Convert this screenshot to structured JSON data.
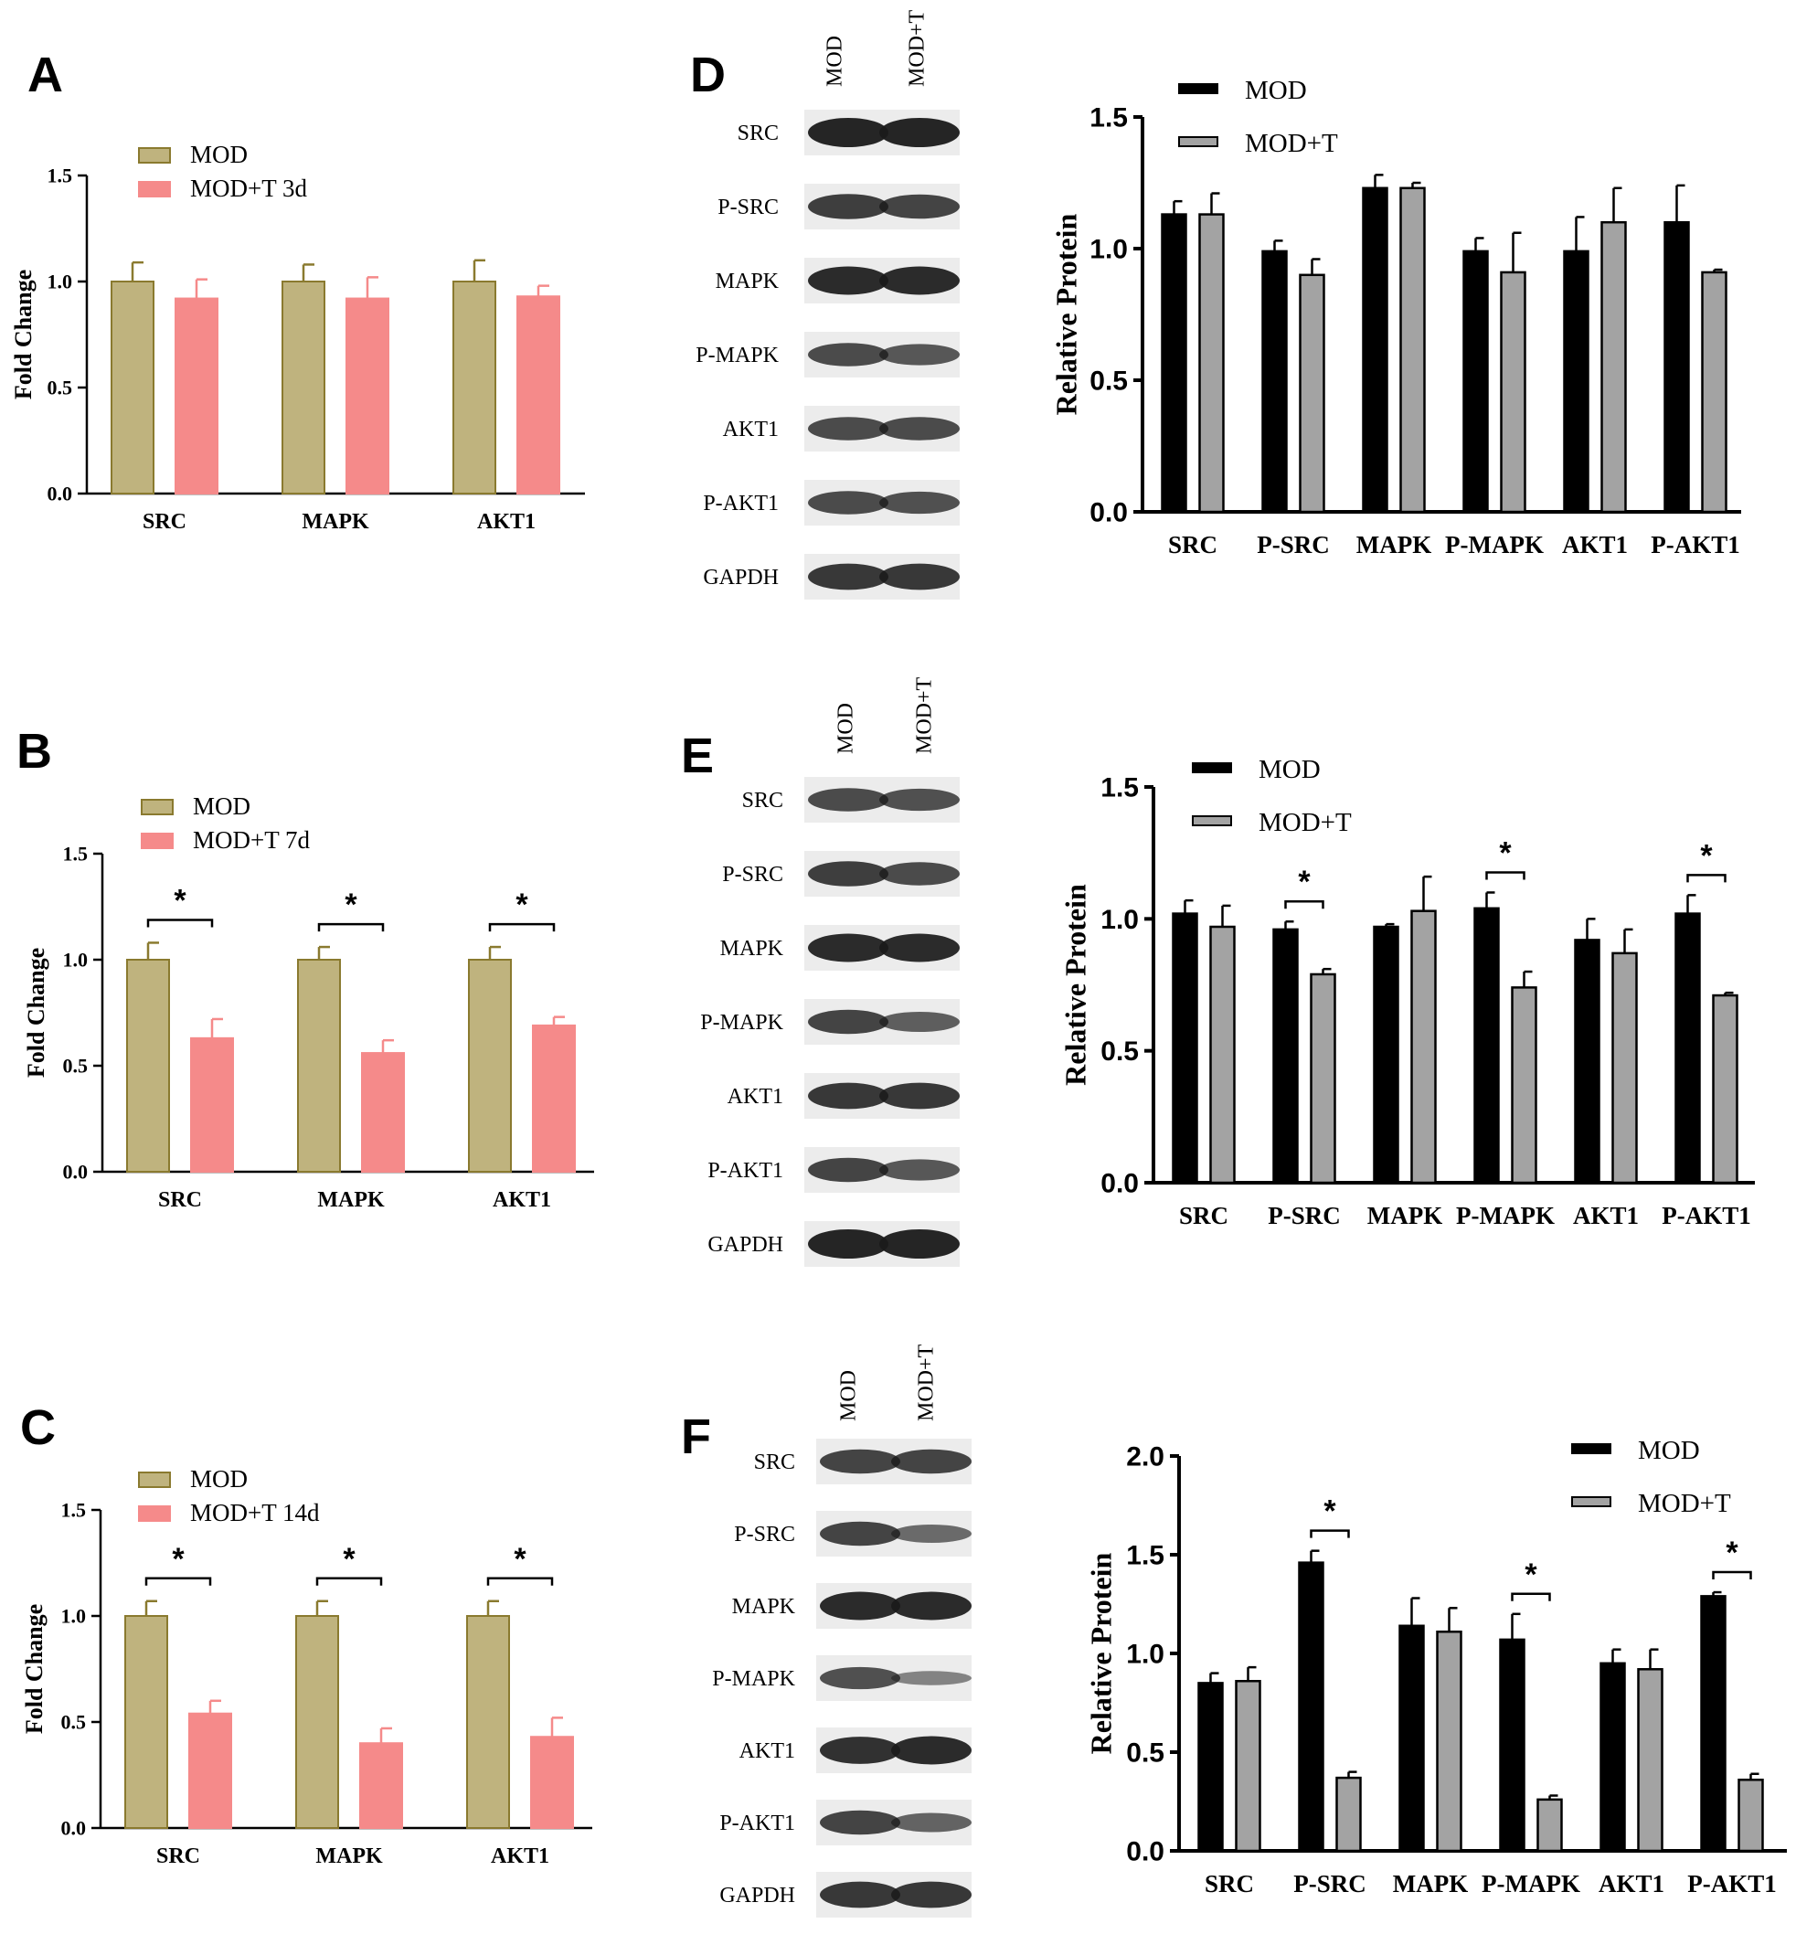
{
  "colors": {
    "mod_fold": "#bfb37e",
    "mod_fold_stroke": "#8a7a2f",
    "modt_fold": "#f58a8a",
    "modt_fold_stroke": "#f58a8a",
    "mod_protein": "#000000",
    "modt_protein": "#a3a3a3",
    "axis": "#000000",
    "blot_bg": "#ececec",
    "blot_band": "#1a1a1a"
  },
  "blots": [
    {
      "panel": "D",
      "lane_labels": [
        "MOD",
        "MOD+T"
      ],
      "rows": [
        {
          "label": "SRC",
          "bands": [
            1.0,
            1.0
          ]
        },
        {
          "label": "P-SRC",
          "bands": [
            0.8,
            0.75
          ]
        },
        {
          "label": "MAPK",
          "bands": [
            0.95,
            0.95
          ]
        },
        {
          "label": "P-MAPK",
          "bands": [
            0.7,
            0.6
          ]
        },
        {
          "label": "AKT1",
          "bands": [
            0.7,
            0.7
          ]
        },
        {
          "label": "P-AKT1",
          "bands": [
            0.7,
            0.65
          ]
        },
        {
          "label": "GAPDH",
          "bands": [
            0.85,
            0.85
          ]
        }
      ]
    },
    {
      "panel": "E",
      "lane_labels": [
        "MOD",
        "MOD+T"
      ],
      "rows": [
        {
          "label": "SRC",
          "bands": [
            0.7,
            0.65
          ]
        },
        {
          "label": "P-SRC",
          "bands": [
            0.8,
            0.7
          ]
        },
        {
          "label": "MAPK",
          "bands": [
            0.95,
            0.95
          ]
        },
        {
          "label": "P-MAPK",
          "bands": [
            0.75,
            0.55
          ]
        },
        {
          "label": "AKT1",
          "bands": [
            0.85,
            0.85
          ]
        },
        {
          "label": "P-AKT1",
          "bands": [
            0.75,
            0.6
          ]
        },
        {
          "label": "GAPDH",
          "bands": [
            1.0,
            1.0
          ]
        }
      ]
    },
    {
      "panel": "F",
      "lane_labels": [
        "MOD",
        "MOD+T"
      ],
      "rows": [
        {
          "label": "SRC",
          "bands": [
            0.75,
            0.75
          ]
        },
        {
          "label": "P-SRC",
          "bands": [
            0.75,
            0.45
          ]
        },
        {
          "label": "MAPK",
          "bands": [
            0.95,
            0.95
          ]
        },
        {
          "label": "P-MAPK",
          "bands": [
            0.65,
            0.25
          ]
        },
        {
          "label": "AKT1",
          "bands": [
            0.9,
            0.95
          ]
        },
        {
          "label": "P-AKT1",
          "bands": [
            0.75,
            0.5
          ]
        },
        {
          "label": "GAPDH",
          "bands": [
            0.85,
            0.85
          ]
        }
      ]
    }
  ],
  "chart_data": [
    {
      "panel": "A",
      "type": "bar",
      "ylabel": "Fold Change",
      "ylim": [
        0,
        1.5
      ],
      "yticks": [
        "0.0",
        "0.5",
        "1.0",
        "1.5"
      ],
      "categories": [
        "SRC",
        "MAPK",
        "AKT1"
      ],
      "series": [
        {
          "name": "MOD",
          "values": [
            1.0,
            1.0,
            1.0
          ],
          "errors": [
            0.09,
            0.08,
            0.1
          ]
        },
        {
          "name": "MOD+T 3d",
          "values": [
            0.92,
            0.92,
            0.93
          ],
          "errors": [
            0.09,
            0.1,
            0.05
          ]
        }
      ],
      "significance": [
        false,
        false,
        false
      ],
      "legend": "top-left"
    },
    {
      "panel": "B",
      "type": "bar",
      "ylabel": "Fold Change",
      "ylim": [
        0,
        1.5
      ],
      "yticks": [
        "0.0",
        "0.5",
        "1.0",
        "1.5"
      ],
      "categories": [
        "SRC",
        "MAPK",
        "AKT1"
      ],
      "series": [
        {
          "name": "MOD",
          "values": [
            1.0,
            1.0,
            1.0
          ],
          "errors": [
            0.08,
            0.06,
            0.06
          ]
        },
        {
          "name": "MOD+T 7d",
          "values": [
            0.63,
            0.56,
            0.69
          ],
          "errors": [
            0.09,
            0.06,
            0.04
          ]
        }
      ],
      "significance": [
        true,
        true,
        true
      ],
      "significance_label": "*",
      "legend": "top-left"
    },
    {
      "panel": "C",
      "type": "bar",
      "ylabel": "Fold Change",
      "ylim": [
        0,
        1.5
      ],
      "yticks": [
        "0.0",
        "0.5",
        "1.0",
        "1.5"
      ],
      "categories": [
        "SRC",
        "MAPK",
        "AKT1"
      ],
      "series": [
        {
          "name": "MOD",
          "values": [
            1.0,
            1.0,
            1.0
          ],
          "errors": [
            0.07,
            0.07,
            0.07
          ]
        },
        {
          "name": "MOD+T 14d",
          "values": [
            0.54,
            0.4,
            0.43
          ],
          "errors": [
            0.06,
            0.07,
            0.09
          ]
        }
      ],
      "significance": [
        true,
        true,
        true
      ],
      "significance_label": "*",
      "legend": "top-left"
    },
    {
      "panel": "D",
      "type": "bar",
      "ylabel": "Relative Protein",
      "ylim": [
        0,
        1.5
      ],
      "yticks": [
        "0.0",
        "0.5",
        "1.0",
        "1.5"
      ],
      "categories": [
        "SRC",
        "P-SRC",
        "MAPK",
        "P-MAPK",
        "AKT1",
        "P-AKT1"
      ],
      "series": [
        {
          "name": "MOD",
          "values": [
            1.13,
            0.99,
            1.23,
            0.99,
            0.99,
            1.1
          ],
          "errors": [
            0.05,
            0.04,
            0.05,
            0.05,
            0.13,
            0.14
          ]
        },
        {
          "name": "MOD+T",
          "values": [
            1.13,
            0.9,
            1.23,
            0.91,
            1.1,
            0.91
          ],
          "errors": [
            0.08,
            0.06,
            0.02,
            0.15,
            0.13,
            0.01
          ]
        }
      ],
      "significance": [
        false,
        false,
        false,
        false,
        false,
        false
      ],
      "legend": "top-left"
    },
    {
      "panel": "E",
      "type": "bar",
      "ylabel": "Relative Protein",
      "ylim": [
        0,
        1.5
      ],
      "yticks": [
        "0.0",
        "0.5",
        "1.0",
        "1.5"
      ],
      "categories": [
        "SRC",
        "P-SRC",
        "MAPK",
        "P-MAPK",
        "AKT1",
        "P-AKT1"
      ],
      "series": [
        {
          "name": "MOD",
          "values": [
            1.02,
            0.96,
            0.97,
            1.04,
            0.92,
            1.02
          ],
          "errors": [
            0.05,
            0.03,
            0.01,
            0.06,
            0.08,
            0.07
          ]
        },
        {
          "name": "MOD+T",
          "values": [
            0.97,
            0.79,
            1.03,
            0.74,
            0.87,
            0.71
          ],
          "errors": [
            0.08,
            0.02,
            0.13,
            0.06,
            0.09,
            0.01
          ]
        }
      ],
      "significance": [
        false,
        true,
        false,
        true,
        false,
        true
      ],
      "significance_label": "*",
      "legend": "top-left"
    },
    {
      "panel": "F",
      "type": "bar",
      "ylabel": "Relative Protein",
      "ylim": [
        0,
        2.0
      ],
      "yticks": [
        "0.0",
        "0.5",
        "1.0",
        "1.5",
        "2.0"
      ],
      "categories": [
        "SRC",
        "P-SRC",
        "MAPK",
        "P-MAPK",
        "AKT1",
        "P-AKT1"
      ],
      "series": [
        {
          "name": "MOD",
          "values": [
            0.85,
            1.46,
            1.14,
            1.07,
            0.95,
            1.29
          ],
          "errors": [
            0.05,
            0.06,
            0.14,
            0.13,
            0.07,
            0.02
          ]
        },
        {
          "name": "MOD+T",
          "values": [
            0.86,
            0.37,
            1.11,
            0.26,
            0.92,
            0.36
          ],
          "errors": [
            0.07,
            0.03,
            0.12,
            0.02,
            0.1,
            0.03
          ]
        }
      ],
      "significance": [
        false,
        true,
        false,
        true,
        false,
        true
      ],
      "significance_label": "*",
      "legend": "top-right"
    }
  ]
}
